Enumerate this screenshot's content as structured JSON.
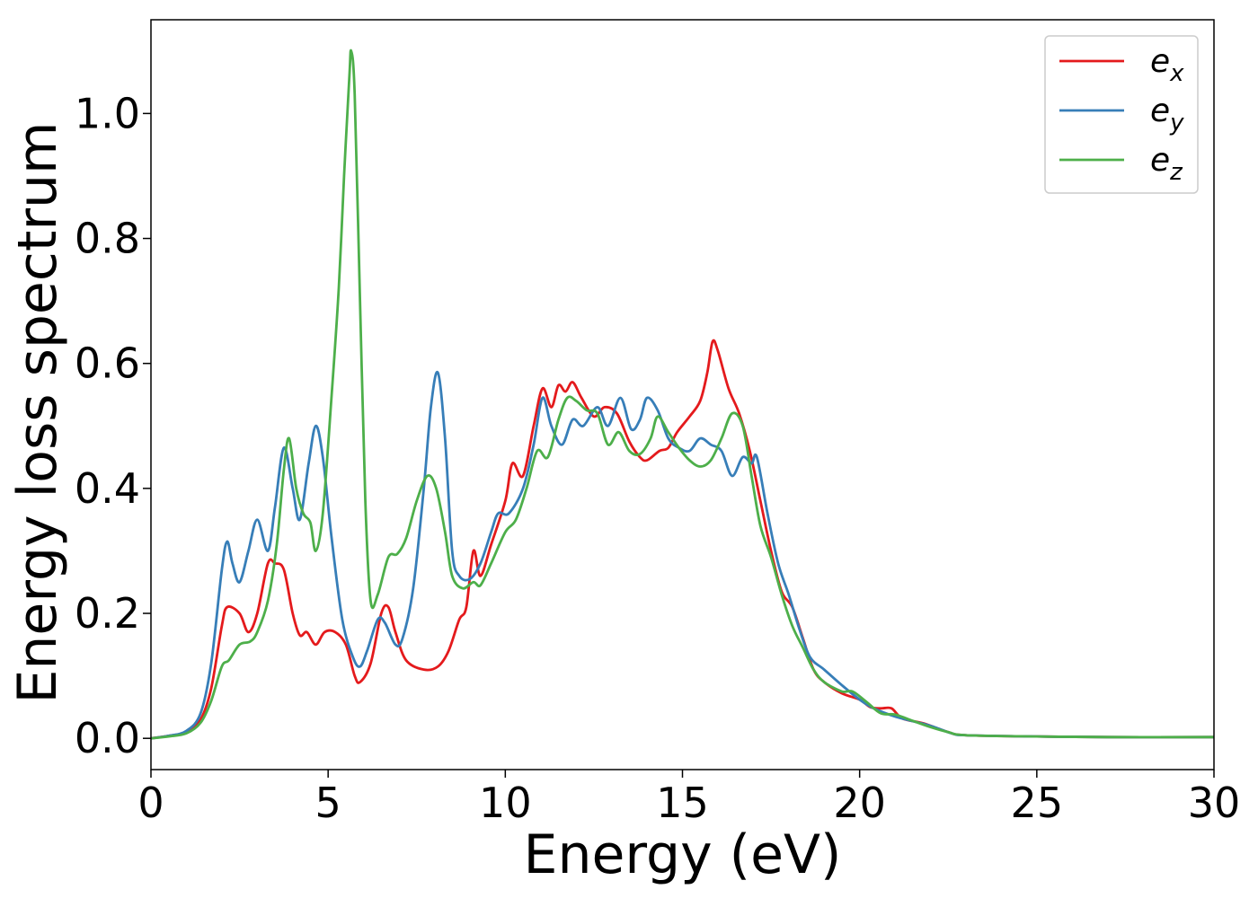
{
  "chart_data": {
    "type": "line",
    "title": "",
    "xlabel": "Energy (eV)",
    "ylabel": "Energy loss spectrum",
    "xlim": [
      0,
      30
    ],
    "ylim": [
      -0.05,
      1.15
    ],
    "xticks": [
      0,
      5,
      10,
      15,
      20,
      25,
      30
    ],
    "xtick_labels": [
      "0",
      "5",
      "10",
      "15",
      "20",
      "25",
      "30"
    ],
    "yticks": [
      0.0,
      0.2,
      0.4,
      0.6,
      0.8,
      1.0
    ],
    "ytick_labels": [
      "0.0",
      "0.2",
      "0.4",
      "0.6",
      "0.8",
      "1.0"
    ],
    "grid": false,
    "legend_position": "top-right",
    "series": [
      {
        "name_base": "e",
        "name_sub": "x",
        "color": "#e41a1c",
        "points": [
          [
            0,
            0
          ],
          [
            0.5,
            0.004
          ],
          [
            1.0,
            0.01
          ],
          [
            1.4,
            0.03
          ],
          [
            1.7,
            0.08
          ],
          [
            2.0,
            0.18
          ],
          [
            2.15,
            0.21
          ],
          [
            2.5,
            0.2
          ],
          [
            2.75,
            0.17
          ],
          [
            3.0,
            0.2
          ],
          [
            3.3,
            0.28
          ],
          [
            3.5,
            0.28
          ],
          [
            3.75,
            0.27
          ],
          [
            4.0,
            0.2
          ],
          [
            4.2,
            0.165
          ],
          [
            4.4,
            0.17
          ],
          [
            4.65,
            0.15
          ],
          [
            4.9,
            0.17
          ],
          [
            5.2,
            0.17
          ],
          [
            5.5,
            0.15
          ],
          [
            5.75,
            0.1
          ],
          [
            5.9,
            0.09
          ],
          [
            6.2,
            0.12
          ],
          [
            6.5,
            0.2
          ],
          [
            6.7,
            0.21
          ],
          [
            6.9,
            0.17
          ],
          [
            7.2,
            0.125
          ],
          [
            7.7,
            0.11
          ],
          [
            8.1,
            0.115
          ],
          [
            8.4,
            0.14
          ],
          [
            8.7,
            0.19
          ],
          [
            8.9,
            0.21
          ],
          [
            9.1,
            0.3
          ],
          [
            9.3,
            0.26
          ],
          [
            9.6,
            0.31
          ],
          [
            10.0,
            0.38
          ],
          [
            10.2,
            0.44
          ],
          [
            10.5,
            0.42
          ],
          [
            10.8,
            0.5
          ],
          [
            11.05,
            0.56
          ],
          [
            11.3,
            0.53
          ],
          [
            11.5,
            0.565
          ],
          [
            11.7,
            0.555
          ],
          [
            11.9,
            0.57
          ],
          [
            12.15,
            0.545
          ],
          [
            12.5,
            0.515
          ],
          [
            12.8,
            0.53
          ],
          [
            13.15,
            0.52
          ],
          [
            13.5,
            0.475
          ],
          [
            13.8,
            0.45
          ],
          [
            14.0,
            0.445
          ],
          [
            14.35,
            0.46
          ],
          [
            14.6,
            0.465
          ],
          [
            14.85,
            0.49
          ],
          [
            15.2,
            0.515
          ],
          [
            15.5,
            0.54
          ],
          [
            15.7,
            0.585
          ],
          [
            15.85,
            0.635
          ],
          [
            16.0,
            0.62
          ],
          [
            16.3,
            0.56
          ],
          [
            16.6,
            0.52
          ],
          [
            16.9,
            0.46
          ],
          [
            17.2,
            0.38
          ],
          [
            17.5,
            0.3
          ],
          [
            17.8,
            0.235
          ],
          [
            18.1,
            0.21
          ],
          [
            18.4,
            0.16
          ],
          [
            18.7,
            0.11
          ],
          [
            19.0,
            0.09
          ],
          [
            19.5,
            0.072
          ],
          [
            20.0,
            0.062
          ],
          [
            20.3,
            0.05
          ],
          [
            20.6,
            0.048
          ],
          [
            20.9,
            0.048
          ],
          [
            21.2,
            0.032
          ],
          [
            21.8,
            0.024
          ],
          [
            22.5,
            0.01
          ],
          [
            23.0,
            0.005
          ],
          [
            25,
            0.003
          ],
          [
            27,
            0.002
          ],
          [
            30,
            0.002
          ]
        ]
      },
      {
        "name_base": "e",
        "name_sub": "y",
        "color": "#377eb8",
        "points": [
          [
            0,
            0
          ],
          [
            0.5,
            0.004
          ],
          [
            1.0,
            0.012
          ],
          [
            1.4,
            0.04
          ],
          [
            1.7,
            0.12
          ],
          [
            2.0,
            0.27
          ],
          [
            2.15,
            0.315
          ],
          [
            2.3,
            0.28
          ],
          [
            2.5,
            0.25
          ],
          [
            2.75,
            0.3
          ],
          [
            3.0,
            0.35
          ],
          [
            3.3,
            0.3
          ],
          [
            3.5,
            0.37
          ],
          [
            3.75,
            0.465
          ],
          [
            4.0,
            0.4
          ],
          [
            4.2,
            0.35
          ],
          [
            4.45,
            0.44
          ],
          [
            4.65,
            0.5
          ],
          [
            4.85,
            0.45
          ],
          [
            5.1,
            0.32
          ],
          [
            5.4,
            0.19
          ],
          [
            5.7,
            0.13
          ],
          [
            5.9,
            0.115
          ],
          [
            6.1,
            0.14
          ],
          [
            6.4,
            0.19
          ],
          [
            6.6,
            0.185
          ],
          [
            6.9,
            0.15
          ],
          [
            7.1,
            0.16
          ],
          [
            7.4,
            0.24
          ],
          [
            7.7,
            0.4
          ],
          [
            7.9,
            0.53
          ],
          [
            8.1,
            0.585
          ],
          [
            8.3,
            0.48
          ],
          [
            8.5,
            0.3
          ],
          [
            8.7,
            0.26
          ],
          [
            9.0,
            0.255
          ],
          [
            9.3,
            0.28
          ],
          [
            9.6,
            0.33
          ],
          [
            9.8,
            0.36
          ],
          [
            10.1,
            0.36
          ],
          [
            10.5,
            0.4
          ],
          [
            10.8,
            0.47
          ],
          [
            11.05,
            0.545
          ],
          [
            11.3,
            0.5
          ],
          [
            11.6,
            0.47
          ],
          [
            11.9,
            0.51
          ],
          [
            12.2,
            0.5
          ],
          [
            12.6,
            0.53
          ],
          [
            12.9,
            0.5
          ],
          [
            13.25,
            0.545
          ],
          [
            13.55,
            0.495
          ],
          [
            13.8,
            0.51
          ],
          [
            14.0,
            0.545
          ],
          [
            14.3,
            0.525
          ],
          [
            14.6,
            0.48
          ],
          [
            14.9,
            0.465
          ],
          [
            15.2,
            0.46
          ],
          [
            15.5,
            0.48
          ],
          [
            15.8,
            0.47
          ],
          [
            16.1,
            0.46
          ],
          [
            16.4,
            0.42
          ],
          [
            16.7,
            0.45
          ],
          [
            16.95,
            0.44
          ],
          [
            17.1,
            0.45
          ],
          [
            17.4,
            0.36
          ],
          [
            17.7,
            0.28
          ],
          [
            18.0,
            0.23
          ],
          [
            18.3,
            0.175
          ],
          [
            18.6,
            0.13
          ],
          [
            19.0,
            0.11
          ],
          [
            19.5,
            0.085
          ],
          [
            20.0,
            0.062
          ],
          [
            20.4,
            0.048
          ],
          [
            21.0,
            0.035
          ],
          [
            22.0,
            0.02
          ],
          [
            22.6,
            0.008
          ],
          [
            23.0,
            0.005
          ],
          [
            25,
            0.003
          ],
          [
            27,
            0.002
          ],
          [
            30,
            0.002
          ]
        ]
      },
      {
        "name_base": "e",
        "name_sub": "z",
        "color": "#4daf4a",
        "points": [
          [
            0,
            0
          ],
          [
            0.5,
            0.003
          ],
          [
            1.0,
            0.008
          ],
          [
            1.4,
            0.025
          ],
          [
            1.7,
            0.06
          ],
          [
            2.0,
            0.115
          ],
          [
            2.2,
            0.125
          ],
          [
            2.5,
            0.15
          ],
          [
            2.8,
            0.155
          ],
          [
            3.0,
            0.17
          ],
          [
            3.3,
            0.22
          ],
          [
            3.55,
            0.31
          ],
          [
            3.75,
            0.43
          ],
          [
            3.9,
            0.48
          ],
          [
            4.1,
            0.4
          ],
          [
            4.3,
            0.36
          ],
          [
            4.5,
            0.345
          ],
          [
            4.65,
            0.3
          ],
          [
            4.85,
            0.36
          ],
          [
            5.1,
            0.55
          ],
          [
            5.3,
            0.72
          ],
          [
            5.45,
            0.9
          ],
          [
            5.6,
            1.06
          ],
          [
            5.65,
            1.1
          ],
          [
            5.75,
            1.03
          ],
          [
            5.9,
            0.7
          ],
          [
            6.05,
            0.38
          ],
          [
            6.2,
            0.22
          ],
          [
            6.4,
            0.23
          ],
          [
            6.7,
            0.29
          ],
          [
            6.95,
            0.295
          ],
          [
            7.2,
            0.32
          ],
          [
            7.5,
            0.38
          ],
          [
            7.8,
            0.42
          ],
          [
            8.05,
            0.4
          ],
          [
            8.3,
            0.33
          ],
          [
            8.5,
            0.26
          ],
          [
            8.8,
            0.24
          ],
          [
            9.1,
            0.25
          ],
          [
            9.3,
            0.245
          ],
          [
            9.6,
            0.28
          ],
          [
            10.0,
            0.33
          ],
          [
            10.3,
            0.35
          ],
          [
            10.6,
            0.4
          ],
          [
            10.9,
            0.46
          ],
          [
            11.2,
            0.45
          ],
          [
            11.5,
            0.51
          ],
          [
            11.75,
            0.545
          ],
          [
            12.0,
            0.54
          ],
          [
            12.3,
            0.525
          ],
          [
            12.6,
            0.52
          ],
          [
            12.9,
            0.47
          ],
          [
            13.2,
            0.49
          ],
          [
            13.5,
            0.46
          ],
          [
            13.8,
            0.455
          ],
          [
            14.1,
            0.48
          ],
          [
            14.3,
            0.515
          ],
          [
            14.6,
            0.49
          ],
          [
            14.9,
            0.465
          ],
          [
            15.2,
            0.445
          ],
          [
            15.5,
            0.435
          ],
          [
            15.8,
            0.445
          ],
          [
            16.1,
            0.48
          ],
          [
            16.4,
            0.52
          ],
          [
            16.7,
            0.5
          ],
          [
            16.95,
            0.42
          ],
          [
            17.2,
            0.34
          ],
          [
            17.5,
            0.29
          ],
          [
            17.8,
            0.23
          ],
          [
            18.1,
            0.18
          ],
          [
            18.4,
            0.145
          ],
          [
            18.7,
            0.11
          ],
          [
            19.0,
            0.09
          ],
          [
            19.5,
            0.075
          ],
          [
            19.8,
            0.075
          ],
          [
            20.2,
            0.058
          ],
          [
            20.6,
            0.04
          ],
          [
            21.0,
            0.038
          ],
          [
            21.5,
            0.028
          ],
          [
            22.0,
            0.018
          ],
          [
            22.5,
            0.01
          ],
          [
            23.0,
            0.005
          ],
          [
            25,
            0.003
          ],
          [
            27,
            0.002
          ],
          [
            30,
            0.002
          ]
        ]
      }
    ]
  }
}
